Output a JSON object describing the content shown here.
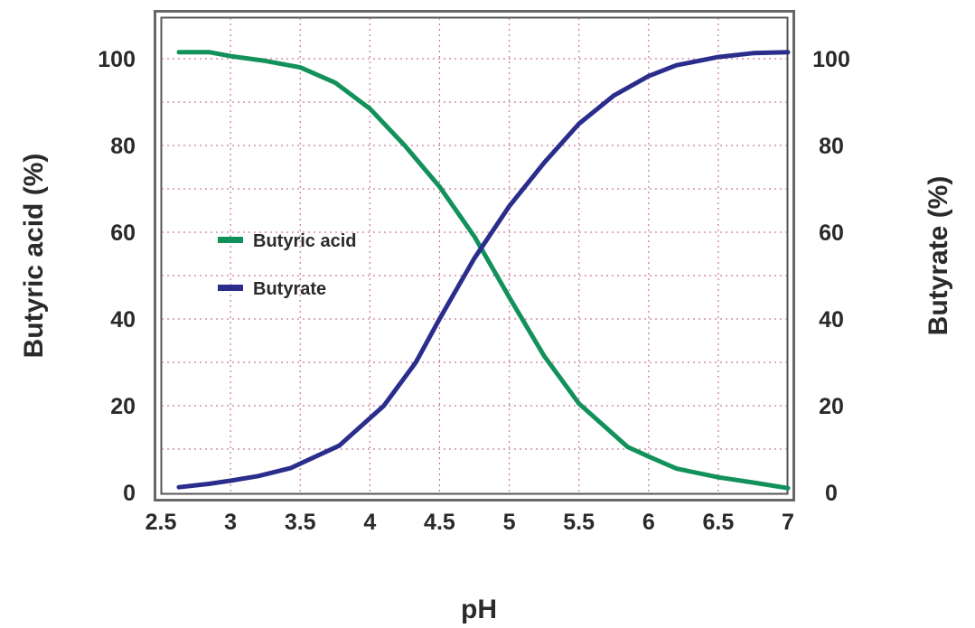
{
  "chart_data": {
    "type": "line",
    "title": "",
    "xlabel": "pH",
    "ylabel_left": "Butyric acid (%)",
    "ylabel_right": "Butyrate (%)",
    "xlim": [
      2.5,
      7
    ],
    "ylim": [
      0,
      110
    ],
    "x_ticks": [
      "2.5",
      "3",
      "3.5",
      "4",
      "4.5",
      "5",
      "5.5",
      "6",
      "6.5",
      "7"
    ],
    "y_ticks_left": [
      "0",
      "20",
      "40",
      "60",
      "80",
      "100"
    ],
    "y_ticks_right": [
      "0",
      "20",
      "40",
      "60",
      "80",
      "100"
    ],
    "grid": true,
    "grid_style": "dotted",
    "legend_position": "inside-left",
    "series": [
      {
        "name": "Butyric acid",
        "color": "#12915a",
        "x": [
          2.63,
          2.85,
          3.0,
          3.25,
          3.5,
          3.75,
          4.0,
          4.25,
          4.5,
          4.75,
          5.0,
          5.25,
          5.5,
          5.85,
          6.0,
          6.2,
          6.5,
          6.75,
          7.0
        ],
        "values": [
          101.5,
          101.5,
          100.6,
          99.5,
          98,
          94.5,
          88.5,
          80,
          70.5,
          59,
          45,
          31.5,
          20.5,
          10.5,
          8.3,
          5.5,
          3.5,
          2.3,
          1
        ]
      },
      {
        "name": "Butyrate",
        "color": "#2b2d8c",
        "x": [
          2.63,
          2.85,
          3.0,
          3.2,
          3.43,
          3.78,
          4.1,
          4.33,
          4.5,
          4.75,
          5.0,
          5.25,
          5.5,
          5.75,
          6.0,
          6.2,
          6.5,
          6.75,
          7.0
        ],
        "values": [
          1.2,
          2,
          2.7,
          3.8,
          5.6,
          10.8,
          20,
          30,
          40,
          54,
          66,
          76,
          85,
          91.5,
          96,
          98.5,
          100.4,
          101.3,
          101.5
        ]
      }
    ]
  },
  "legend": {
    "items": [
      {
        "label": "Butyric acid",
        "color": "#12915a"
      },
      {
        "label": "Butyrate",
        "color": "#2b2d8c"
      }
    ]
  },
  "colors": {
    "grid": "#c9779a",
    "frame": "#555555",
    "text": "#2a2a2a"
  }
}
